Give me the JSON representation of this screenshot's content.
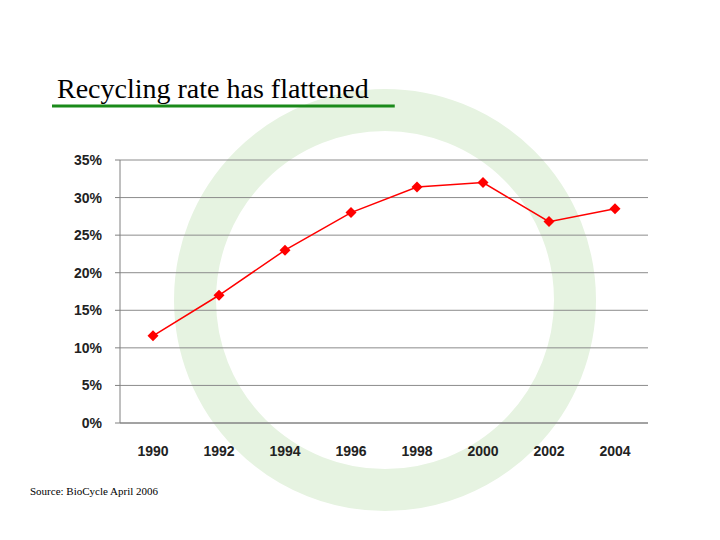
{
  "chart_data": {
    "type": "line",
    "title": "Recycling rate has flattened",
    "annotations": [
      "Source: BioCycle April 2006"
    ],
    "categories": [
      "1990",
      "1992",
      "1994",
      "1996",
      "1998",
      "2000",
      "2002",
      "2004"
    ],
    "values": [
      11.6,
      17.0,
      23.0,
      28.0,
      31.4,
      32.0,
      26.8,
      28.5
    ],
    "color": "#ff0000",
    "marker": "diamond",
    "line_style": "solid",
    "ylim": [
      0,
      35
    ],
    "yticks": [
      {
        "value": 0,
        "label": "0%"
      },
      {
        "value": 5,
        "label": "5%"
      },
      {
        "value": 10,
        "label": "10%"
      },
      {
        "value": 15,
        "label": "15%"
      },
      {
        "value": 20,
        "label": "20%"
      },
      {
        "value": 25,
        "label": "25%"
      },
      {
        "value": 30,
        "label": "30%"
      },
      {
        "value": 35,
        "label": "35%"
      }
    ],
    "grid": true
  }
}
